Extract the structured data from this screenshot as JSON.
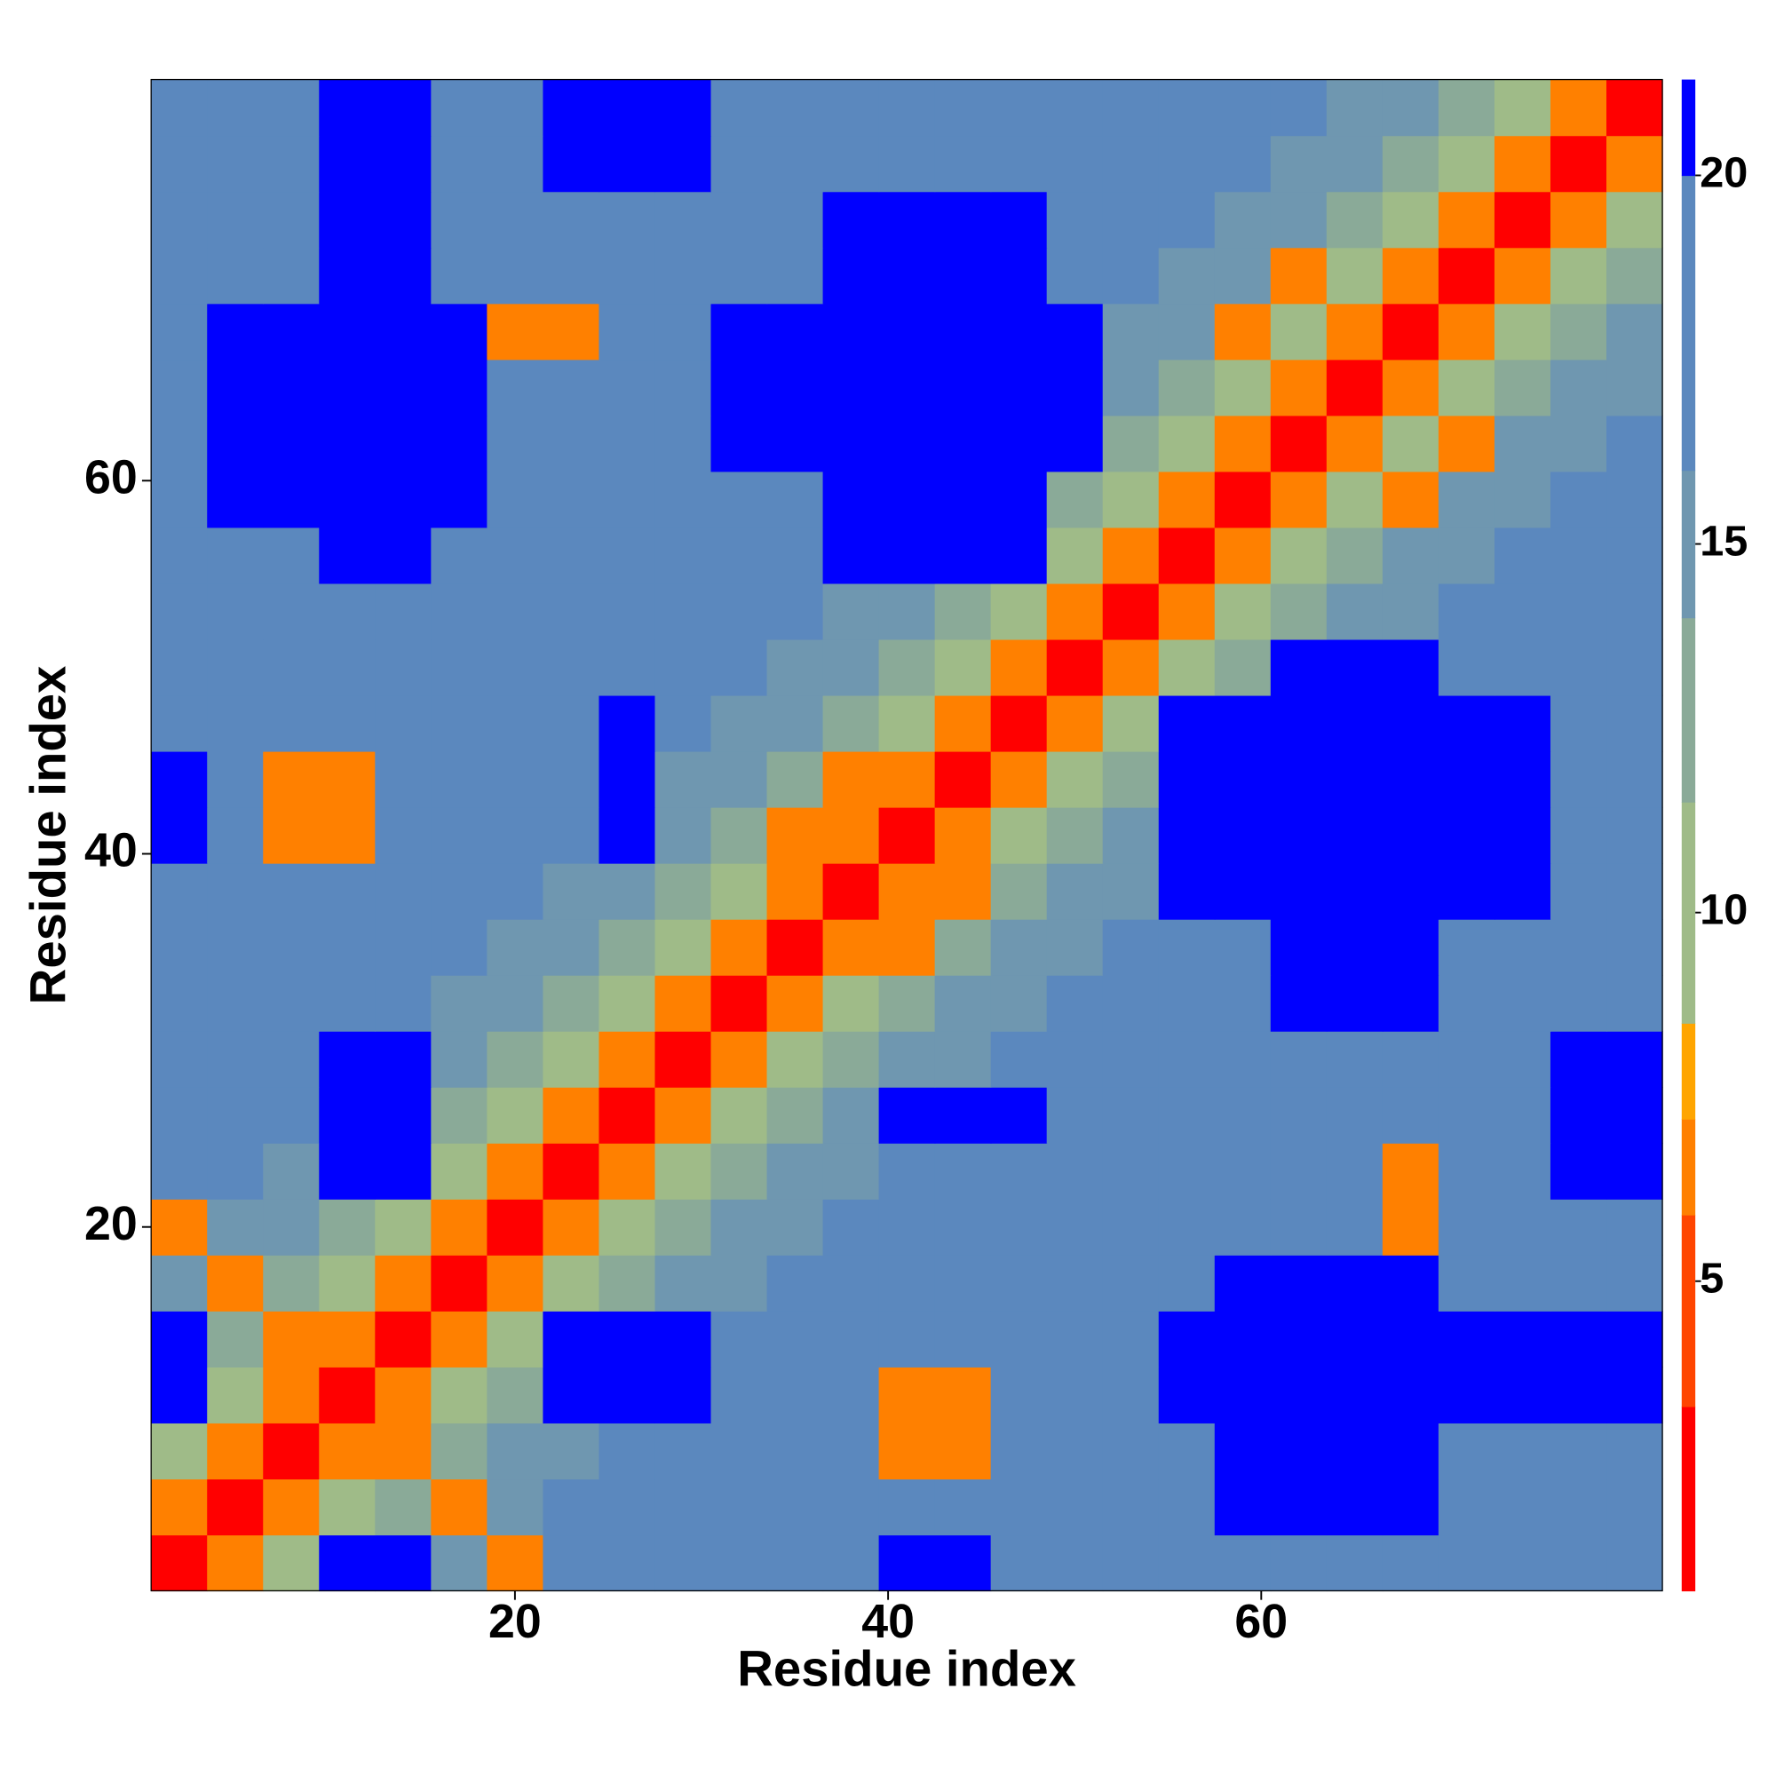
{
  "chart_data": {
    "type": "heatmap",
    "xlabel": "Residue index",
    "ylabel": "Residue index",
    "xbins": [
      0.5,
      3.5,
      6.5,
      9.5,
      12.5,
      15.5,
      18.5,
      21.5,
      24.5,
      27.5,
      30.5,
      33.5,
      36.5,
      39.5,
      42.5,
      45.5,
      48.5,
      51.5,
      54.5,
      57.5,
      60.5,
      63.5,
      66.5,
      69.5,
      72.5,
      75.5,
      78.5,
      81.5
    ],
    "ybins": [
      0.5,
      3.5,
      6.5,
      9.5,
      12.5,
      15.5,
      18.5,
      21.5,
      24.5,
      27.5,
      30.5,
      33.5,
      36.5,
      39.5,
      42.5,
      45.5,
      48.5,
      51.5,
      54.5,
      57.5,
      60.5,
      63.5,
      66.5,
      69.5,
      72.5,
      75.5,
      78.5,
      81.5
    ],
    "xlim": [
      0.5,
      81.5
    ],
    "ylim": [
      0.5,
      81.5
    ],
    "xticks": [
      20,
      40,
      60
    ],
    "yticks": [
      20,
      40,
      60
    ],
    "z": [
      [
        2,
        6,
        10,
        21,
        21,
        15,
        7,
        17,
        17,
        17,
        17,
        17,
        17,
        21,
        21,
        17,
        17,
        17,
        17,
        17,
        17,
        17,
        17,
        17,
        17,
        17,
        17
      ],
      [
        6,
        2,
        6,
        10,
        13,
        7,
        15,
        17,
        17,
        17,
        17,
        17,
        17,
        17,
        17,
        17,
        17,
        17,
        17,
        21,
        21,
        21,
        21,
        17,
        17,
        17,
        17
      ],
      [
        10,
        6,
        2,
        6,
        7,
        13,
        15,
        15,
        17,
        17,
        17,
        17,
        17,
        7,
        7,
        17,
        17,
        17,
        17,
        21,
        21,
        21,
        21,
        17,
        17,
        17,
        17
      ],
      [
        21,
        10,
        6,
        2,
        6,
        10,
        13,
        21,
        21,
        21,
        17,
        17,
        17,
        7,
        7,
        17,
        17,
        17,
        21,
        21,
        21,
        21,
        21,
        21,
        21,
        21,
        21
      ],
      [
        21,
        13,
        7,
        6,
        2,
        6,
        10,
        21,
        21,
        21,
        17,
        17,
        17,
        17,
        17,
        17,
        17,
        17,
        21,
        21,
        21,
        21,
        21,
        21,
        21,
        21,
        21
      ],
      [
        15,
        7,
        13,
        10,
        6,
        2,
        6,
        10,
        13,
        15,
        15,
        17,
        17,
        17,
        17,
        17,
        17,
        17,
        17,
        21,
        21,
        21,
        21,
        17,
        17,
        17,
        17
      ],
      [
        7,
        15,
        15,
        13,
        10,
        6,
        2,
        6,
        10,
        13,
        15,
        15,
        17,
        17,
        17,
        17,
        17,
        17,
        17,
        17,
        17,
        17,
        7,
        17,
        17,
        17,
        17
      ],
      [
        17,
        17,
        15,
        21,
        21,
        10,
        6,
        2,
        6,
        10,
        13,
        15,
        15,
        17,
        17,
        17,
        17,
        17,
        17,
        17,
        17,
        17,
        7,
        17,
        17,
        21,
        21
      ],
      [
        17,
        17,
        17,
        21,
        21,
        13,
        10,
        6,
        2,
        6,
        10,
        13,
        15,
        21,
        21,
        21,
        17,
        17,
        17,
        17,
        17,
        17,
        17,
        17,
        17,
        21,
        21
      ],
      [
        17,
        17,
        17,
        21,
        21,
        15,
        13,
        10,
        6,
        2,
        6,
        10,
        13,
        15,
        15,
        17,
        17,
        17,
        17,
        17,
        17,
        17,
        17,
        17,
        17,
        21,
        21
      ],
      [
        17,
        17,
        17,
        17,
        17,
        15,
        15,
        13,
        10,
        6,
        2,
        6,
        10,
        13,
        15,
        15,
        17,
        17,
        17,
        17,
        21,
        21,
        21,
        17,
        17,
        17,
        17
      ],
      [
        17,
        17,
        17,
        17,
        17,
        17,
        15,
        15,
        13,
        10,
        6,
        2,
        6,
        7,
        13,
        15,
        15,
        17,
        17,
        17,
        21,
        21,
        21,
        17,
        17,
        17,
        17
      ],
      [
        17,
        17,
        17,
        17,
        17,
        17,
        17,
        15,
        15,
        13,
        10,
        6,
        2,
        6,
        7,
        13,
        15,
        15,
        21,
        21,
        21,
        21,
        21,
        21,
        21,
        17,
        17
      ],
      [
        21,
        17,
        7,
        7,
        17,
        17,
        17,
        17,
        21,
        15,
        13,
        7,
        6,
        2,
        6,
        10,
        13,
        15,
        21,
        21,
        21,
        21,
        21,
        21,
        21,
        17,
        17
      ],
      [
        21,
        17,
        7,
        7,
        17,
        17,
        17,
        17,
        21,
        15,
        15,
        13,
        7,
        6,
        2,
        6,
        10,
        13,
        21,
        21,
        21,
        21,
        21,
        21,
        21,
        17,
        17
      ],
      [
        17,
        17,
        17,
        17,
        17,
        17,
        17,
        17,
        21,
        17,
        15,
        15,
        13,
        10,
        6,
        2,
        6,
        10,
        21,
        21,
        21,
        21,
        21,
        21,
        21,
        17,
        17
      ],
      [
        17,
        17,
        17,
        17,
        17,
        17,
        17,
        17,
        17,
        17,
        17,
        15,
        15,
        13,
        10,
        6,
        2,
        6,
        10,
        13,
        21,
        21,
        21,
        17,
        17,
        17,
        17
      ],
      [
        17,
        17,
        17,
        17,
        17,
        17,
        17,
        17,
        17,
        17,
        17,
        17,
        15,
        15,
        13,
        10,
        6,
        2,
        6,
        10,
        13,
        15,
        15,
        17,
        17,
        17,
        17
      ],
      [
        17,
        17,
        17,
        21,
        21,
        17,
        17,
        17,
        17,
        17,
        17,
        17,
        21,
        21,
        21,
        21,
        10,
        6,
        2,
        6,
        10,
        13,
        15,
        15,
        17,
        17,
        17
      ],
      [
        17,
        21,
        21,
        21,
        21,
        21,
        17,
        17,
        17,
        17,
        17,
        17,
        21,
        21,
        21,
        21,
        13,
        10,
        6,
        2,
        6,
        10,
        7,
        15,
        15,
        17,
        17
      ],
      [
        17,
        21,
        21,
        21,
        21,
        21,
        17,
        17,
        17,
        17,
        21,
        21,
        21,
        21,
        21,
        21,
        21,
        13,
        10,
        6,
        2,
        6,
        10,
        7,
        15,
        15,
        17
      ],
      [
        17,
        21,
        21,
        21,
        21,
        21,
        17,
        17,
        17,
        17,
        21,
        21,
        21,
        21,
        21,
        21,
        21,
        15,
        13,
        10,
        6,
        2,
        6,
        10,
        13,
        15,
        15
      ],
      [
        17,
        21,
        21,
        21,
        21,
        21,
        7,
        7,
        17,
        17,
        21,
        21,
        21,
        21,
        21,
        21,
        21,
        15,
        15,
        7,
        10,
        6,
        2,
        6,
        10,
        13,
        15
      ],
      [
        17,
        17,
        17,
        21,
        21,
        17,
        17,
        17,
        17,
        17,
        17,
        17,
        21,
        21,
        21,
        21,
        17,
        17,
        15,
        15,
        7,
        10,
        6,
        2,
        6,
        10,
        13
      ],
      [
        17,
        17,
        17,
        21,
        21,
        17,
        17,
        17,
        17,
        17,
        17,
        17,
        21,
        21,
        21,
        21,
        17,
        17,
        17,
        15,
        15,
        13,
        10,
        6,
        2,
        6,
        10
      ],
      [
        17,
        17,
        17,
        21,
        21,
        17,
        17,
        21,
        21,
        21,
        17,
        17,
        17,
        17,
        17,
        17,
        17,
        17,
        17,
        17,
        15,
        15,
        13,
        10,
        6,
        2,
        6
      ],
      [
        17,
        17,
        17,
        21,
        21,
        17,
        17,
        21,
        21,
        21,
        17,
        17,
        17,
        17,
        17,
        17,
        17,
        17,
        17,
        17,
        17,
        15,
        15,
        13,
        10,
        6,
        2
      ]
    ],
    "colorbar": {
      "bounds": [
        0.8,
        3.3,
        5.9,
        7.2,
        8.5,
        11.5,
        14,
        16,
        20,
        21.3
      ],
      "colors": [
        "#ff0000",
        "#ff4500",
        "#ff8000",
        "#ffa500",
        "#9fbb88",
        "#8aaa98",
        "#6f97b0",
        "#5b88be",
        "#0000ff"
      ],
      "ticks": [
        5,
        10,
        15,
        20
      ]
    }
  }
}
